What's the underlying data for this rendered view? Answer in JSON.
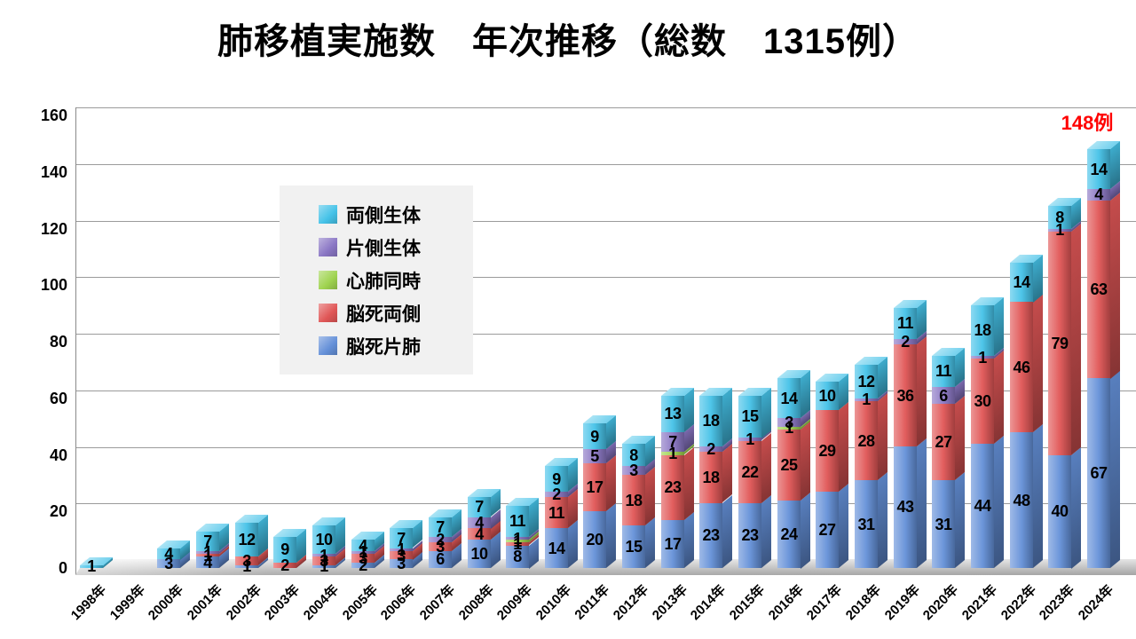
{
  "title": "肺移植実施数　年次推移（総数　1315例）",
  "annotation": {
    "label": "148例",
    "color": "#ff0000",
    "year": "2024年"
  },
  "y_axis": {
    "ticks": [
      0,
      20,
      40,
      60,
      80,
      100,
      120,
      140,
      160
    ]
  },
  "chart_data": {
    "type": "bar",
    "stacked": true,
    "style": "3d",
    "title": "肺移植実施数　年次推移（総数　1315例）",
    "total": 1315,
    "categories": [
      "1998年",
      "1999年",
      "2000年",
      "2001年",
      "2002年",
      "2003年",
      "2004年",
      "2005年",
      "2006年",
      "2007年",
      "2008年",
      "2009年",
      "2010年",
      "2011年",
      "2012年",
      "2013年",
      "2014年",
      "2015年",
      "2016年",
      "2017年",
      "2018年",
      "2019年",
      "2020年",
      "2021年",
      "2022年",
      "2023年",
      "2024年"
    ],
    "series_bottom_to_top": true,
    "series": [
      {
        "name": "脳死片肺",
        "color": "#6490d8",
        "values": [
          0,
          0,
          3,
          4,
          1,
          0,
          1,
          2,
          3,
          6,
          10,
          8,
          14,
          20,
          15,
          17,
          23,
          23,
          24,
          27,
          31,
          43,
          31,
          44,
          48,
          40,
          67
        ]
      },
      {
        "name": "脳死両側",
        "color": "#e05656",
        "values": [
          0,
          0,
          0,
          1,
          3,
          2,
          3,
          3,
          3,
          3,
          4,
          1,
          11,
          17,
          18,
          23,
          18,
          22,
          25,
          29,
          28,
          36,
          27,
          30,
          46,
          79,
          63
        ]
      },
      {
        "name": "心肺同時",
        "color": "#9fd34f",
        "values": [
          0,
          0,
          0,
          0,
          0,
          0,
          0,
          0,
          0,
          0,
          0,
          1,
          0,
          0,
          0,
          1,
          0,
          0,
          1,
          0,
          0,
          0,
          0,
          0,
          0,
          0,
          0
        ]
      },
      {
        "name": "片側生体",
        "color": "#8a76c4",
        "values": [
          0,
          0,
          0,
          1,
          0,
          0,
          1,
          1,
          1,
          2,
          4,
          1,
          2,
          5,
          3,
          7,
          2,
          1,
          3,
          0,
          1,
          2,
          6,
          1,
          0,
          1,
          4
        ]
      },
      {
        "name": "両側生体",
        "color": "#45c2e8",
        "values": [
          1,
          0,
          4,
          7,
          12,
          9,
          10,
          4,
          7,
          7,
          7,
          11,
          9,
          9,
          8,
          13,
          18,
          15,
          14,
          10,
          12,
          11,
          11,
          18,
          14,
          8,
          14
        ]
      }
    ],
    "ylim": [
      0,
      160
    ],
    "yticks": [
      0,
      20,
      40,
      60,
      80,
      100,
      120,
      140,
      160
    ],
    "grid": true,
    "legend_position": "upper-left-inside",
    "legend_order_top_to_bottom": [
      "両側生体",
      "片側生体",
      "心肺同時",
      "脳死両側",
      "脳死片肺"
    ],
    "annotations": [
      {
        "text": "148例",
        "target_year": "2024年",
        "color": "#ff0000"
      }
    ]
  }
}
